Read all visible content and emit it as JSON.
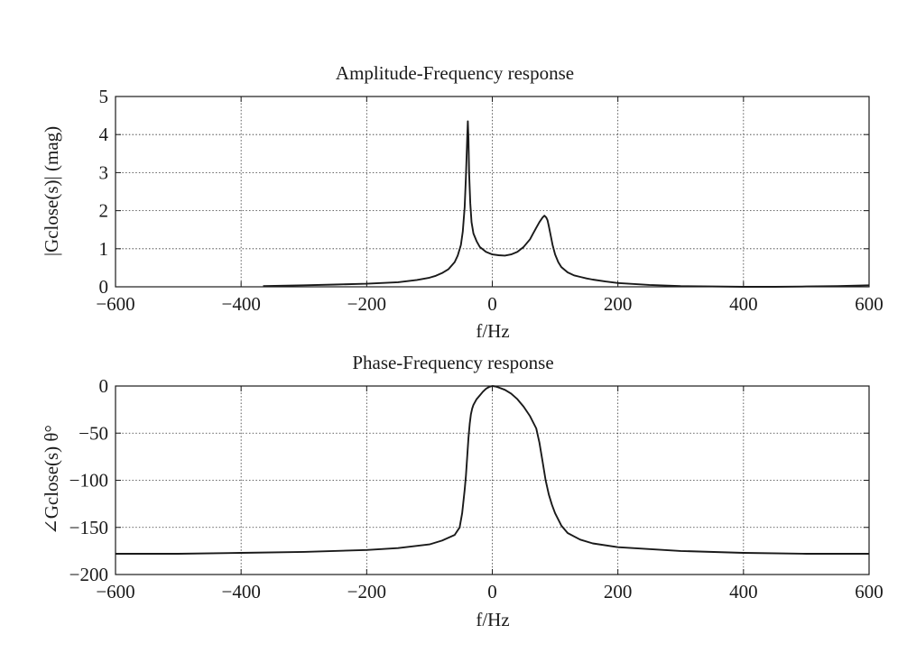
{
  "chart_data": [
    {
      "type": "line",
      "title": "Amplitude-Frequency response",
      "xlabel": "f/Hz",
      "ylabel": "|Gclose(s)| (mag)",
      "xlim": [
        -600,
        600
      ],
      "ylim": [
        0,
        5
      ],
      "xticks": [
        -600,
        -400,
        -200,
        0,
        200,
        400,
        600
      ],
      "xtick_labels": [
        "−600",
        "−400",
        "−200",
        "0",
        "200",
        "400",
        "600"
      ],
      "yticks": [
        0,
        1,
        2,
        3,
        4,
        5
      ],
      "ytick_labels": [
        "0",
        "1",
        "2",
        "3",
        "4",
        "5"
      ],
      "grid": true,
      "line_color": "#1a1a1a",
      "series": [
        {
          "x": [
            -365,
            -300,
            -250,
            -200,
            -150,
            -120,
            -100,
            -90,
            -80,
            -70,
            -60,
            -55,
            -50,
            -47,
            -44,
            -42,
            -40,
            -39,
            -38,
            -37,
            -35,
            -33,
            -30,
            -25,
            -20,
            -10,
            0,
            10,
            20,
            30,
            40,
            50,
            60,
            65,
            70,
            75,
            80,
            83,
            86,
            88,
            90,
            93,
            96,
            100,
            105,
            110,
            120,
            130,
            140,
            150,
            160,
            180,
            200,
            250,
            300,
            350,
            400,
            450,
            500,
            550,
            600
          ],
          "y": [
            0.02,
            0.04,
            0.06,
            0.08,
            0.12,
            0.18,
            0.24,
            0.29,
            0.36,
            0.46,
            0.65,
            0.82,
            1.1,
            1.45,
            2.1,
            2.9,
            3.9,
            4.35,
            3.9,
            3.0,
            2.2,
            1.7,
            1.4,
            1.2,
            1.05,
            0.92,
            0.85,
            0.83,
            0.82,
            0.85,
            0.92,
            1.05,
            1.25,
            1.4,
            1.55,
            1.7,
            1.82,
            1.87,
            1.82,
            1.75,
            1.6,
            1.35,
            1.1,
            0.85,
            0.65,
            0.52,
            0.38,
            0.3,
            0.26,
            0.22,
            0.19,
            0.14,
            0.1,
            0.05,
            0.02,
            0.01,
            0.0,
            0.0,
            0.01,
            0.02,
            0.04
          ]
        }
      ]
    },
    {
      "type": "line",
      "title": "Phase-Frequency response",
      "xlabel": "f/Hz",
      "ylabel": "∠Gclose(s) θ°",
      "xlim": [
        -600,
        600
      ],
      "ylim": [
        -200,
        0
      ],
      "xticks": [
        -600,
        -400,
        -200,
        0,
        200,
        400,
        600
      ],
      "xtick_labels": [
        "−600",
        "−400",
        "−200",
        "0",
        "200",
        "400",
        "600"
      ],
      "yticks": [
        0,
        -50,
        -100,
        -150,
        -200
      ],
      "ytick_labels": [
        "0",
        "−50",
        "−100",
        "−150",
        "−200"
      ],
      "grid": true,
      "line_color": "#1a1a1a",
      "series": [
        {
          "x": [
            -600,
            -500,
            -400,
            -300,
            -200,
            -150,
            -100,
            -80,
            -60,
            -52,
            -48,
            -44,
            -42,
            -40,
            -38,
            -36,
            -34,
            -32,
            -30,
            -25,
            -20,
            -15,
            -10,
            -5,
            0,
            5,
            10,
            20,
            30,
            40,
            50,
            60,
            70,
            75,
            80,
            85,
            90,
            95,
            100,
            110,
            120,
            140,
            160,
            200,
            300,
            400,
            500,
            600
          ],
          "y": [
            -178,
            -178,
            -177,
            -176,
            -174,
            -172,
            -168,
            -164,
            -158,
            -150,
            -135,
            -110,
            -95,
            -75,
            -55,
            -40,
            -30,
            -24,
            -20,
            -14,
            -10,
            -6,
            -3,
            -1,
            0,
            -0.5,
            -1.5,
            -4,
            -8,
            -14,
            -22,
            -32,
            -45,
            -60,
            -80,
            -100,
            -115,
            -126,
            -135,
            -148,
            -156,
            -163,
            -167,
            -171,
            -175,
            -177,
            -178,
            -178
          ]
        }
      ]
    }
  ]
}
